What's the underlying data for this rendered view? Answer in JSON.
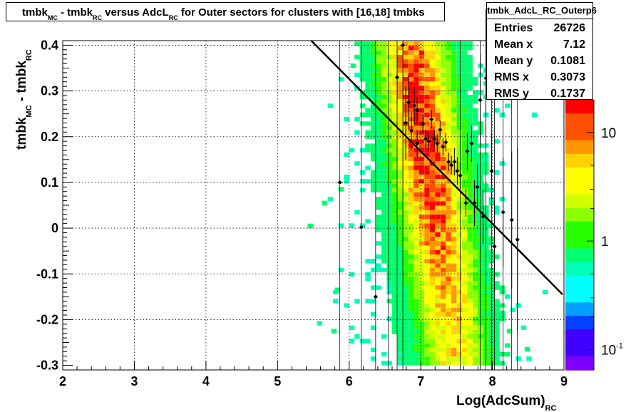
{
  "chart_data": {
    "type": "heatmap",
    "title": {
      "part1": "tmbk",
      "sub1": "MC",
      "part2": " - tmbk",
      "sub2": "RC",
      "part3": " versus AdcL",
      "sub3": "RC",
      "part4": " for Outer sectors for clusters with [16,18] tmbks"
    },
    "xlabel": {
      "main": "Log(AdcSum)",
      "sub": "RC"
    },
    "ylabel": {
      "main": "tmbk",
      "sub1": "MC",
      "mid": " - tmbk",
      "sub2": "RC"
    },
    "xlim": [
      2,
      9
    ],
    "ylim": [
      -0.31,
      0.41
    ],
    "x_ticks": [
      "2",
      "3",
      "4",
      "5",
      "6",
      "7",
      "8",
      "9"
    ],
    "y_ticks": [
      "-0.3",
      "-0.2",
      "-0.1",
      "0",
      "0.1",
      "0.2",
      "0.3",
      "0.4"
    ],
    "colorbar_ticks": [
      {
        "label": "10",
        "exp": "",
        "value": 10
      },
      {
        "label": "1",
        "exp": "",
        "value": 1
      },
      {
        "label": "10",
        "exp": "-1",
        "value": 0.1
      }
    ],
    "profile_points": [
      {
        "x": 5.87,
        "y": 0.1,
        "err": 0.0
      },
      {
        "x": 6.17,
        "y": 0.002,
        "err": 0.0
      },
      {
        "x": 6.37,
        "y": -0.15,
        "err": 0.0
      },
      {
        "x": 6.67,
        "y": 0.33,
        "err": 0.06
      },
      {
        "x": 6.75,
        "y": 0.4,
        "err": 0.0
      },
      {
        "x": 6.79,
        "y": 0.23,
        "err": 0.08
      },
      {
        "x": 6.83,
        "y": 0.275,
        "err": 0.06
      },
      {
        "x": 6.87,
        "y": 0.213,
        "err": 0.04
      },
      {
        "x": 6.91,
        "y": 0.268,
        "err": 0.04
      },
      {
        "x": 6.95,
        "y": 0.185,
        "err": 0.03
      },
      {
        "x": 6.95,
        "y": 0.258,
        "err": 0.03
      },
      {
        "x": 7.03,
        "y": 0.228,
        "err": 0.02
      },
      {
        "x": 7.07,
        "y": 0.195,
        "err": 0.02
      },
      {
        "x": 7.11,
        "y": 0.19,
        "err": 0.02
      },
      {
        "x": 7.15,
        "y": 0.238,
        "err": 0.02
      },
      {
        "x": 7.19,
        "y": 0.195,
        "err": 0.02
      },
      {
        "x": 7.23,
        "y": 0.185,
        "err": 0.02
      },
      {
        "x": 7.27,
        "y": 0.215,
        "err": 0.02
      },
      {
        "x": 7.31,
        "y": 0.178,
        "err": 0.02
      },
      {
        "x": 7.35,
        "y": 0.188,
        "err": 0.02
      },
      {
        "x": 7.39,
        "y": 0.145,
        "err": 0.02
      },
      {
        "x": 7.43,
        "y": 0.138,
        "err": 0.02
      },
      {
        "x": 7.47,
        "y": 0.145,
        "err": 0.03
      },
      {
        "x": 7.51,
        "y": 0.125,
        "err": 0.03
      },
      {
        "x": 7.55,
        "y": 0.115,
        "err": 0.03
      },
      {
        "x": 7.63,
        "y": 0.055,
        "err": 0.03
      },
      {
        "x": 7.65,
        "y": 0.168,
        "err": 0.04
      },
      {
        "x": 7.71,
        "y": 0.185,
        "err": 0.04
      },
      {
        "x": 7.75,
        "y": 0.055,
        "err": 0.05
      },
      {
        "x": 7.79,
        "y": 0.09,
        "err": 0.05
      },
      {
        "x": 7.83,
        "y": 0.28,
        "err": 0.1
      },
      {
        "x": 7.87,
        "y": 0.025,
        "err": 0.06
      },
      {
        "x": 7.91,
        "y": 0.328,
        "err": 0.15
      },
      {
        "x": 7.99,
        "y": 0.125,
        "err": 0.08
      },
      {
        "x": 8.03,
        "y": -0.04,
        "err": 0.1
      },
      {
        "x": 8.15,
        "y": 0.035,
        "err": 0.12
      },
      {
        "x": 8.27,
        "y": 0.018,
        "err": 0.15
      },
      {
        "x": 8.35,
        "y": -0.025,
        "err": 0.2
      }
    ],
    "fit_line": {
      "x": [
        5.47,
        8.98
      ],
      "y": [
        0.41,
        -0.145
      ]
    }
  },
  "stats": {
    "title": "tmbk_AdcL_RC_Outerp6",
    "rows": [
      {
        "label": "Entries",
        "value": "26726"
      },
      {
        "label": "Mean x",
        "value": "7.12"
      },
      {
        "label": "Mean y",
        "value": "0.1081"
      },
      {
        "label": "RMS x",
        "value": "0.3073"
      },
      {
        "label": "RMS y",
        "value": "0.1737"
      }
    ]
  },
  "colors": {
    "high": "#ff0000",
    "mid": "#ffff00",
    "low": "#00ff80",
    "min": "#7f00ff"
  }
}
